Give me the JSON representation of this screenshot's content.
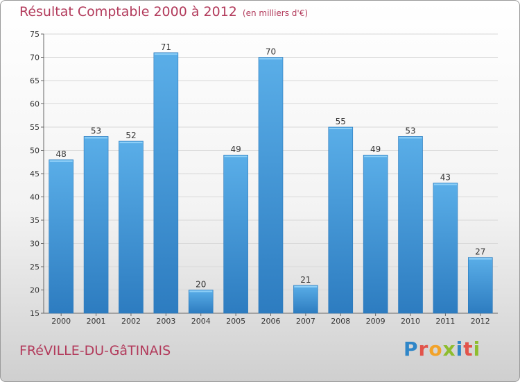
{
  "page": {
    "title": "Résultat Comptable 2000 à 2012",
    "subtitle": "(en milliers d'€)",
    "commune": "FRéVILLE-DU-GâTINAIS",
    "logo": "Proxiti"
  },
  "chart_data": {
    "type": "bar",
    "title": "Résultat Comptable 2000 à 2012",
    "subtitle": "(en milliers d'€)",
    "categories": [
      "2000",
      "2001",
      "2002",
      "2003",
      "2004",
      "2005",
      "2006",
      "2007",
      "2008",
      "2009",
      "2010",
      "2011",
      "2012"
    ],
    "values": [
      48,
      53,
      52,
      71,
      20,
      49,
      70,
      21,
      55,
      49,
      53,
      43,
      27
    ],
    "ylim": [
      15,
      75
    ],
    "yticks": [
      15,
      20,
      25,
      30,
      35,
      40,
      45,
      50,
      55,
      60,
      65,
      70,
      75
    ],
    "grid": true,
    "data_labels": true,
    "colors": {
      "bar": "#3f93d6",
      "bar_light": "#5aaee8",
      "bar_dark": "#2d7cc0",
      "title": "#b23a5b",
      "grid": "#d8d8d8"
    }
  }
}
